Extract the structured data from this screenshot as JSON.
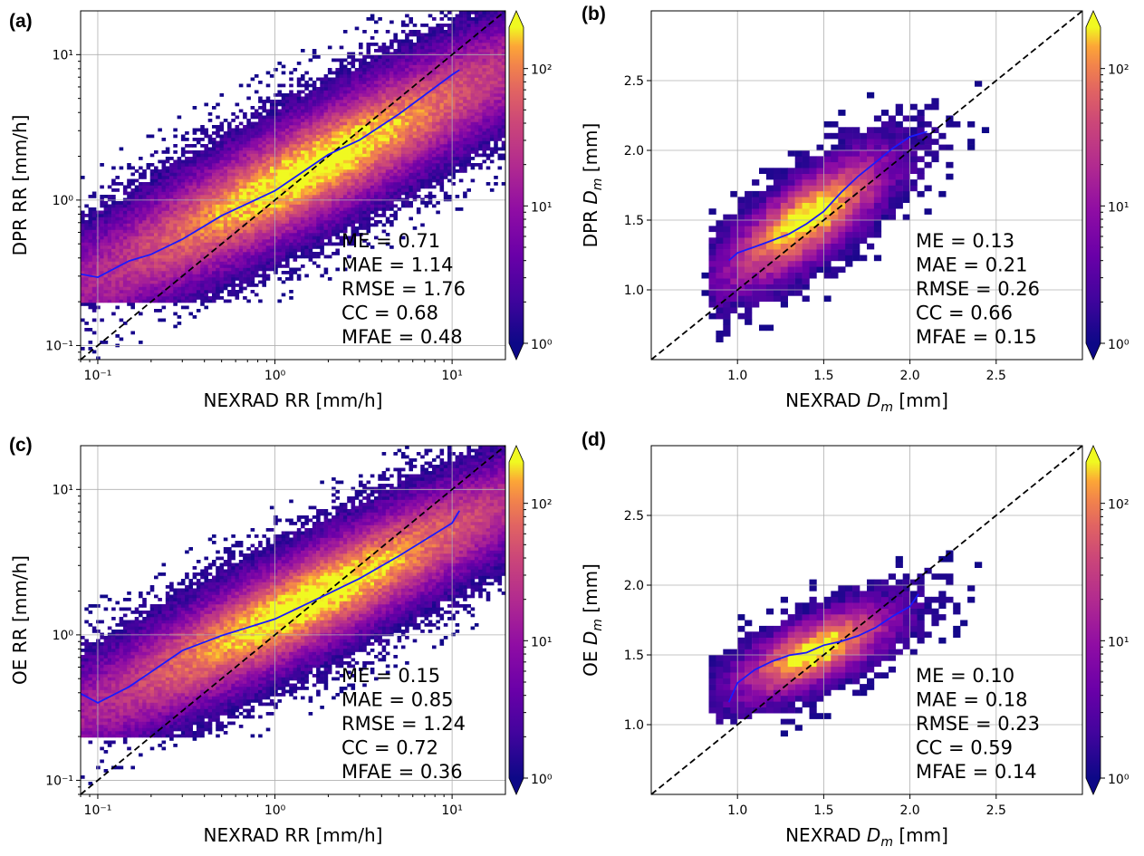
{
  "chart_data": [
    {
      "id": "a",
      "panel_label": "(a)",
      "type": "heatmap",
      "scale": "log",
      "xlabel": "NEXRAD RR [mm/h]",
      "ylabel": "DPR RR [mm/h]",
      "xlim": [
        0.08,
        20
      ],
      "ylim": [
        0.08,
        20
      ],
      "xticks": [
        {
          "v": 0.1,
          "label": "10⁻¹"
        },
        {
          "v": 1,
          "label": "10⁰"
        },
        {
          "v": 10,
          "label": "10¹"
        }
      ],
      "yticks": [
        {
          "v": 0.1,
          "label": "10⁻¹"
        },
        {
          "v": 1,
          "label": "10⁰"
        },
        {
          "v": 10,
          "label": "10¹"
        }
      ],
      "grid": true,
      "one_to_one_line": true,
      "colorbar": {
        "scale": "log",
        "range": [
          1,
          200
        ],
        "ticks": [
          "10⁰",
          "10¹",
          "10²"
        ],
        "extend": "both",
        "colormap": "plasma"
      },
      "mean_line": {
        "color": "#1a1aff",
        "x": [
          0.08,
          0.1,
          0.15,
          0.2,
          0.3,
          0.5,
          1,
          2,
          3,
          5,
          10,
          11
        ],
        "y": [
          0.3,
          0.3,
          0.37,
          0.42,
          0.55,
          0.75,
          1.2,
          2.0,
          2.6,
          3.8,
          7.2,
          8.0
        ]
      },
      "density": {
        "slope": 0.62,
        "intercept_log10": 0.09,
        "spread": 0.28
      },
      "stats": [
        "ME = 0.71",
        "MAE = 1.14",
        "RMSE = 1.76",
        "CC = 0.68",
        "MFAE = 0.48"
      ]
    },
    {
      "id": "b",
      "panel_label": "(b)",
      "type": "heatmap",
      "scale": "linear",
      "xlabel_main": "NEXRAD ",
      "xlabel_sym": "D",
      "xlabel_sub": "m",
      "xlabel_unit": " [mm]",
      "ylabel_main": "DPR ",
      "ylabel_sym": "D",
      "ylabel_sub": "m",
      "ylabel_unit": " [mm]",
      "xlim": [
        0.5,
        3.0
      ],
      "ylim": [
        0.5,
        3.0
      ],
      "xticks": [
        {
          "v": 1.0,
          "label": "1.0"
        },
        {
          "v": 1.5,
          "label": "1.5"
        },
        {
          "v": 2.0,
          "label": "2.0"
        },
        {
          "v": 2.5,
          "label": "2.5"
        }
      ],
      "yticks": [
        {
          "v": 1.0,
          "label": "1.0"
        },
        {
          "v": 1.5,
          "label": "1.5"
        },
        {
          "v": 2.0,
          "label": "2.0"
        },
        {
          "v": 2.5,
          "label": "2.5"
        }
      ],
      "grid": true,
      "one_to_one_line": true,
      "colorbar": {
        "scale": "log",
        "range": [
          1,
          200
        ],
        "ticks": [
          "10⁰",
          "10¹",
          "10²"
        ],
        "extend": "both",
        "colormap": "plasma"
      },
      "mean_line": {
        "color": "#1a1aff",
        "x": [
          0.95,
          1.0,
          1.1,
          1.2,
          1.3,
          1.4,
          1.5,
          1.6,
          1.7,
          1.8,
          1.9,
          2.0,
          2.1
        ],
        "y": [
          1.2,
          1.25,
          1.3,
          1.35,
          1.42,
          1.48,
          1.58,
          1.7,
          1.8,
          1.9,
          2.0,
          2.1,
          2.15
        ]
      },
      "density": {
        "slope": 0.75,
        "intercept": 0.45,
        "spread": 0.22,
        "xcenter": 1.4,
        "xspread": 0.35
      },
      "stats": [
        "ME = 0.13",
        "MAE = 0.21",
        "RMSE = 0.26",
        "CC = 0.66",
        "MFAE = 0.15"
      ]
    },
    {
      "id": "c",
      "panel_label": "(c)",
      "type": "heatmap",
      "scale": "log",
      "xlabel": "NEXRAD RR [mm/h]",
      "ylabel": "OE RR [mm/h]",
      "xlim": [
        0.08,
        20
      ],
      "ylim": [
        0.08,
        20
      ],
      "xticks": [
        {
          "v": 0.1,
          "label": "10⁻¹"
        },
        {
          "v": 1,
          "label": "10⁰"
        },
        {
          "v": 10,
          "label": "10¹"
        }
      ],
      "yticks": [
        {
          "v": 0.1,
          "label": "10⁻¹"
        },
        {
          "v": 1,
          "label": "10⁰"
        },
        {
          "v": 10,
          "label": "10¹"
        }
      ],
      "grid": true,
      "one_to_one_line": true,
      "colorbar": {
        "scale": "log",
        "range": [
          1,
          200
        ],
        "ticks": [
          "10⁰",
          "10¹",
          "10²"
        ],
        "extend": "both",
        "colormap": "plasma"
      },
      "mean_line": {
        "color": "#1a1aff",
        "x": [
          0.08,
          0.1,
          0.15,
          0.2,
          0.3,
          0.5,
          1,
          2,
          3,
          5,
          10,
          11
        ],
        "y": [
          0.4,
          0.35,
          0.45,
          0.55,
          0.75,
          0.95,
          1.3,
          1.9,
          2.4,
          3.4,
          5.8,
          7.0
        ]
      },
      "density": {
        "slope": 0.6,
        "intercept_log10": 0.12,
        "spread": 0.26
      },
      "stats": [
        "ME = 0.15",
        "MAE = 0.85",
        "RMSE = 1.24",
        "CC = 0.72",
        "MFAE = 0.36"
      ]
    },
    {
      "id": "d",
      "panel_label": "(d)",
      "type": "heatmap",
      "scale": "linear",
      "xlabel_main": "NEXRAD ",
      "xlabel_sym": "D",
      "xlabel_sub": "m",
      "xlabel_unit": " [mm]",
      "ylabel_main": "OE ",
      "ylabel_sym": "D",
      "ylabel_sub": "m",
      "ylabel_unit": " [mm]",
      "xlim": [
        0.5,
        3.0
      ],
      "ylim": [
        0.5,
        3.0
      ],
      "xticks": [
        {
          "v": 1.0,
          "label": "1.0"
        },
        {
          "v": 1.5,
          "label": "1.5"
        },
        {
          "v": 2.0,
          "label": "2.0"
        },
        {
          "v": 2.5,
          "label": "2.5"
        }
      ],
      "yticks": [
        {
          "v": 1.0,
          "label": "1.0"
        },
        {
          "v": 1.5,
          "label": "1.5"
        },
        {
          "v": 2.0,
          "label": "2.0"
        },
        {
          "v": 2.5,
          "label": "2.5"
        }
      ],
      "grid": true,
      "one_to_one_line": true,
      "colorbar": {
        "scale": "log",
        "range": [
          1,
          200
        ],
        "ticks": [
          "10⁰",
          "10¹",
          "10²"
        ],
        "extend": "both",
        "colormap": "plasma"
      },
      "mean_line": {
        "color": "#1a1aff",
        "x": [
          0.95,
          1.0,
          1.1,
          1.2,
          1.3,
          1.4,
          1.5,
          1.6,
          1.7,
          1.8,
          1.9,
          2.0,
          2.05
        ],
        "y": [
          1.15,
          1.3,
          1.38,
          1.45,
          1.5,
          1.53,
          1.56,
          1.6,
          1.65,
          1.7,
          1.78,
          1.85,
          1.92
        ]
      },
      "density": {
        "slope": 0.5,
        "intercept": 0.8,
        "spread": 0.17,
        "xcenter": 1.45,
        "xspread": 0.33
      },
      "stats": [
        "ME = 0.10",
        "MAE = 0.18",
        "RMSE = 0.23",
        "CC = 0.59",
        "MFAE = 0.14"
      ]
    }
  ]
}
